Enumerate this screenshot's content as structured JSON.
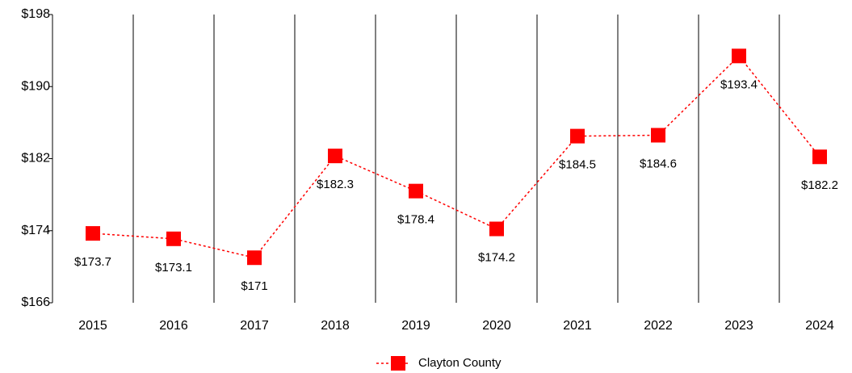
{
  "chart_data": {
    "type": "line",
    "categories": [
      "2015",
      "2016",
      "2017",
      "2018",
      "2019",
      "2020",
      "2021",
      "2022",
      "2023",
      "2024"
    ],
    "series": [
      {
        "name": "Clayton County",
        "color": "#ff0000",
        "values": [
          173.7,
          173.1,
          171,
          182.3,
          178.4,
          174.2,
          184.5,
          184.6,
          193.4,
          182.2
        ],
        "value_labels": [
          "$173.7",
          "$173.1",
          "$171",
          "$182.3",
          "$178.4",
          "$174.2",
          "$184.5",
          "$184.6",
          "$193.4",
          "$182.2"
        ]
      }
    ],
    "ylim": [
      166,
      198
    ],
    "yticks": [
      {
        "value": 166,
        "label": "$166"
      },
      {
        "value": 174,
        "label": "$174"
      },
      {
        "value": 182,
        "label": "$182"
      },
      {
        "value": 190,
        "label": "$190"
      },
      {
        "value": 198,
        "label": "$198"
      }
    ],
    "legend": "bottom"
  }
}
